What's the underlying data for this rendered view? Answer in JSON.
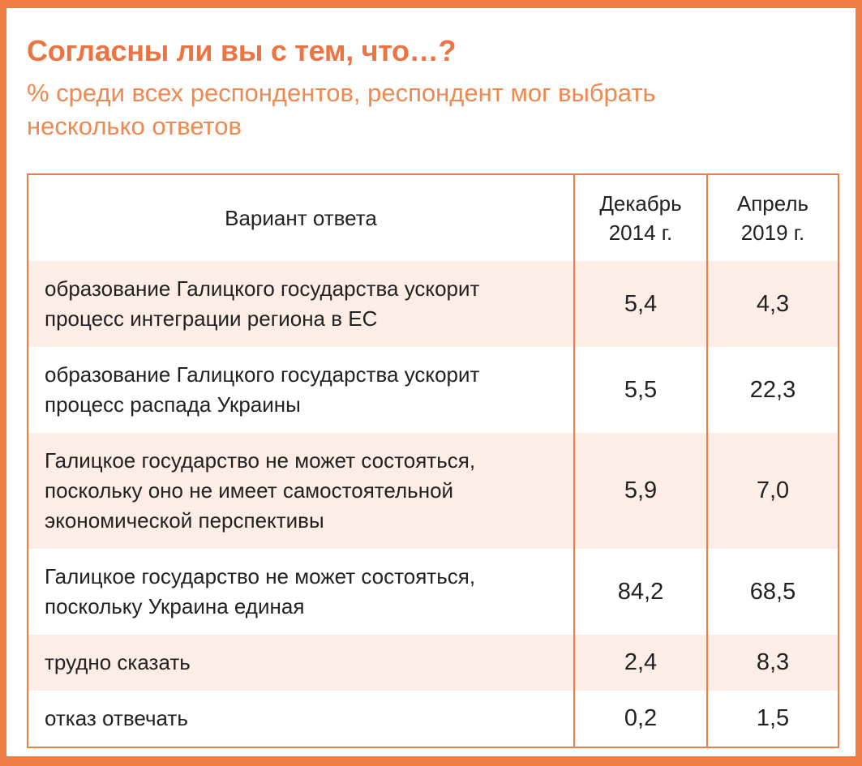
{
  "header": {
    "title": "Согласны ли вы с тем, что…?",
    "subtitle": "% среди всех респондентов, респондент мог выбрать несколько ответов"
  },
  "table": {
    "columns": {
      "answer": "Вариант ответа",
      "dec2014": "Декабрь 2014 г.",
      "apr2019": "Апрель 2019 г."
    },
    "rows": [
      {
        "label": "образование Галицкого государства ускорит процесс интеграции региона в ЕС",
        "dec2014": "5,4",
        "apr2019": "4,3"
      },
      {
        "label": "образование Галицкого государства ускорит процесс распада Украины",
        "dec2014": "5,5",
        "apr2019": "22,3"
      },
      {
        "label": "Галицкое государство не может состояться, поскольку оно не имеет самостоятельной экономической перспективы",
        "dec2014": "5,9",
        "apr2019": "7,0"
      },
      {
        "label": "Галицкое государство не может состояться, поскольку Украина единая",
        "dec2014": "84,2",
        "apr2019": "68,5"
      },
      {
        "label": "трудно сказать",
        "dec2014": "2,4",
        "apr2019": "8,3"
      },
      {
        "label": "отказ отвечать",
        "dec2014": "0,2",
        "apr2019": "1,5"
      }
    ]
  },
  "chart_data": {
    "type": "table",
    "title": "Согласны ли вы с тем, что…?",
    "subtitle": "% среди всех респондентов, респондент мог выбрать несколько ответов",
    "columns": [
      "Вариант ответа",
      "Декабрь 2014 г.",
      "Апрель 2019 г."
    ],
    "categories": [
      "образование Галицкого государства ускорит процесс интеграции региона в ЕС",
      "образование Галицкого государства ускорит процесс распада Украины",
      "Галицкое государство не может состояться, поскольку оно не имеет самостоятельной экономической перспективы",
      "Галицкое государство не может состояться, поскольку Украина единая",
      "трудно сказать",
      "отказ отвечать"
    ],
    "series": [
      {
        "name": "Декабрь 2014 г.",
        "values": [
          5.4,
          5.5,
          5.9,
          84.2,
          2.4,
          0.2
        ]
      },
      {
        "name": "Апрель 2019 г.",
        "values": [
          4.3,
          22.3,
          7.0,
          68.5,
          8.3,
          1.5
        ]
      }
    ]
  },
  "colors": {
    "accent_orange": "#EE7E46",
    "title_orange": "#EC7442",
    "subtitle_orange": "#F0884F",
    "row_alt_peach": "#FCEDE6",
    "text": "#222222"
  }
}
